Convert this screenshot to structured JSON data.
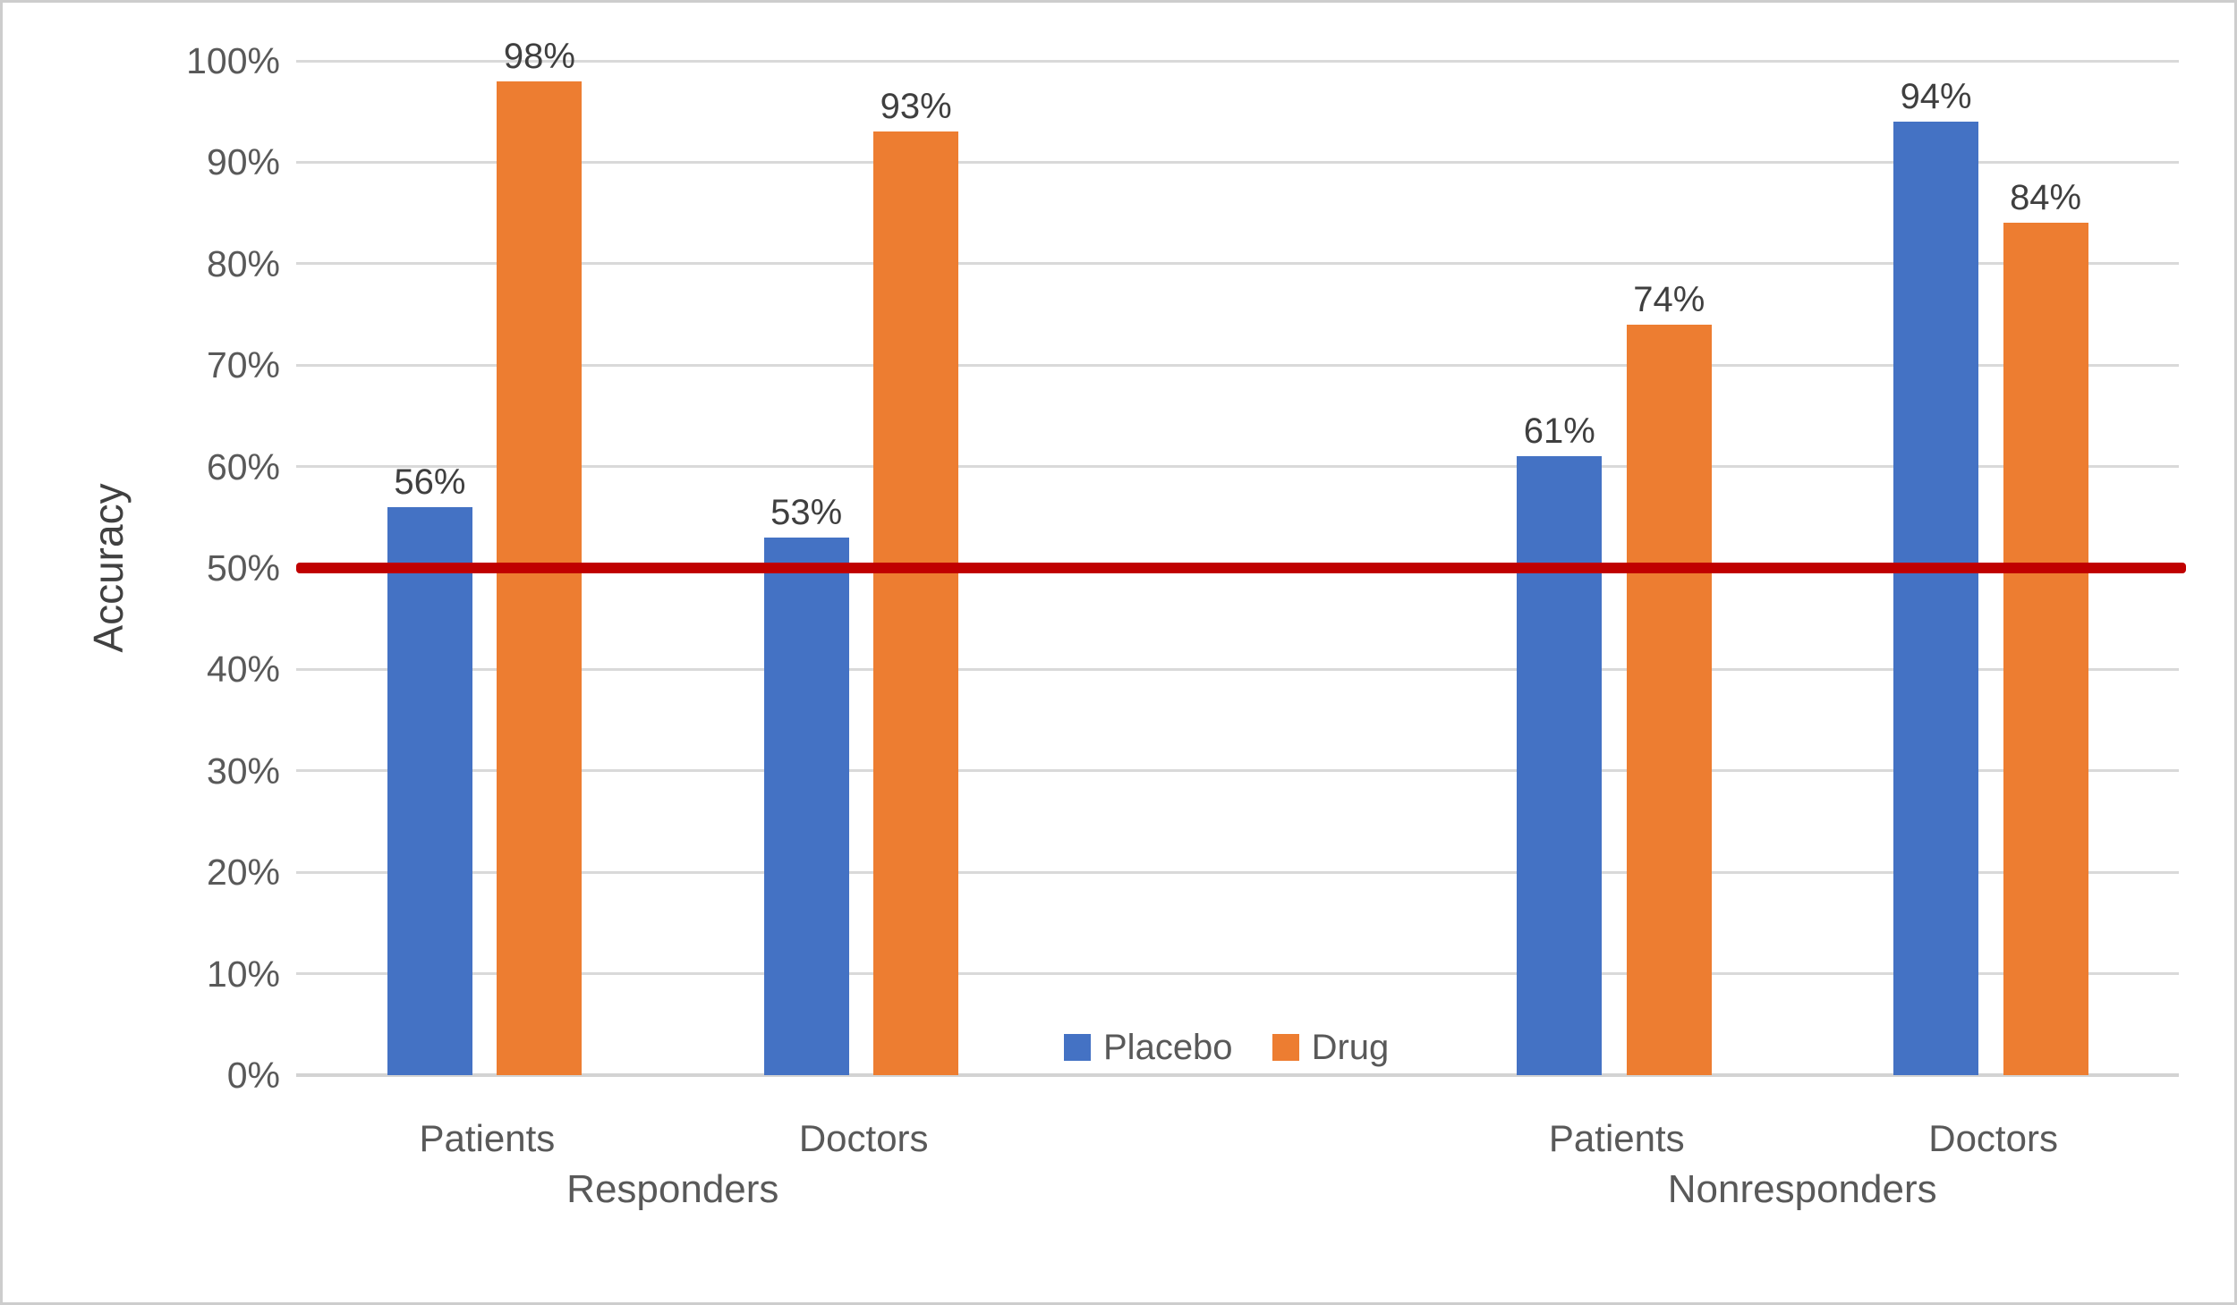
{
  "chart_data": {
    "type": "bar",
    "title": "",
    "xlabel": "",
    "ylabel": "Accuracy",
    "ylim": [
      0,
      100
    ],
    "grid": true,
    "y_ticks": [
      "0%",
      "10%",
      "20%",
      "30%",
      "40%",
      "50%",
      "60%",
      "70%",
      "80%",
      "90%",
      "100%"
    ],
    "groups": [
      {
        "label": "Responders",
        "categories": [
          "Patients",
          "Doctors"
        ]
      },
      {
        "label": "Nonresponders",
        "categories": [
          "Patients",
          "Doctors"
        ]
      }
    ],
    "series": [
      {
        "name": "Placebo",
        "color": "#4472C4",
        "values": [
          56,
          53,
          61,
          94
        ],
        "value_labels": [
          "56%",
          "53%",
          "61%",
          "94%"
        ]
      },
      {
        "name": "Drug",
        "color": "#ED7D31",
        "values": [
          98,
          93,
          74,
          84
        ],
        "value_labels": [
          "98%",
          "93%",
          "74%",
          "84%"
        ]
      }
    ],
    "reference_line": {
      "value": 50,
      "color": "#C00000"
    },
    "legend": {
      "position": "bottom-center",
      "items": [
        "Placebo",
        "Drug"
      ]
    },
    "colors": {
      "gridline": "#d9d9d9",
      "axis_line": "#d3d3d3",
      "tick_text": "#595959",
      "data_label": "#3f3f3f",
      "axis_title": "#404040"
    }
  },
  "layout_note": ""
}
